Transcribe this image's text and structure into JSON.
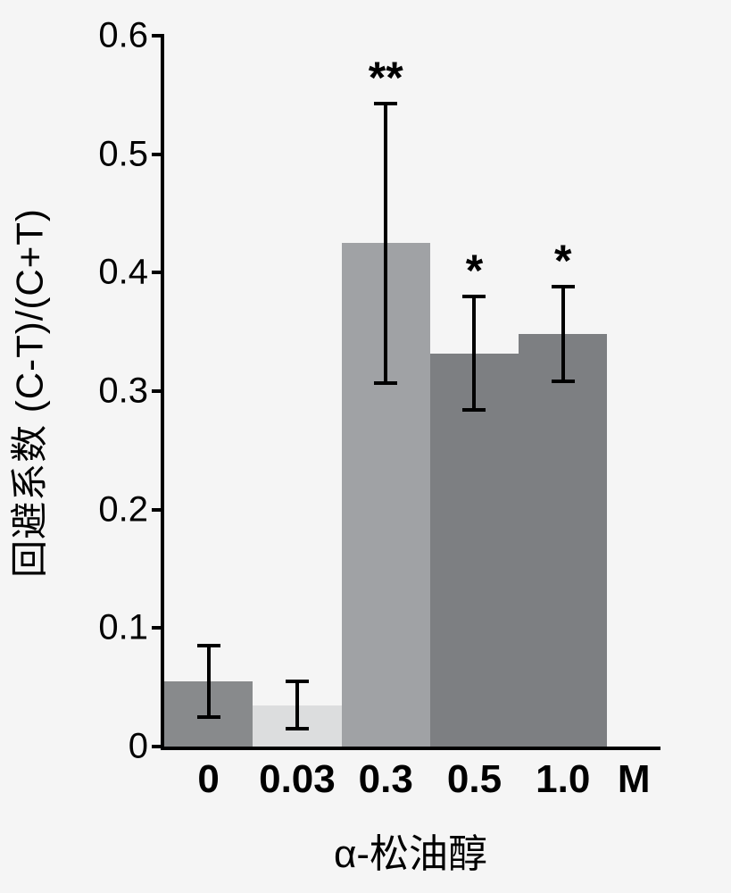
{
  "chart": {
    "type": "bar",
    "ylabel": "回避系数  (C-T)/(C+T)",
    "xlabel": "α-松油醇",
    "ylim": [
      0,
      0.6
    ],
    "yticks": [
      0,
      0.1,
      0.2,
      0.3,
      0.4,
      0.5,
      0.6
    ],
    "ytick_labels": [
      "0",
      "0.1",
      "0.2",
      "0.3",
      "0.4",
      "0.5",
      "0.6"
    ],
    "categories": [
      "0",
      "0.03",
      "0.3",
      "0.5",
      "1.0"
    ],
    "x_extra_label": "M",
    "values": [
      0.055,
      0.035,
      0.425,
      0.332,
      0.348
    ],
    "err_low": [
      0.03,
      0.02,
      0.118,
      0.048,
      0.04
    ],
    "err_high": [
      0.03,
      0.02,
      0.118,
      0.048,
      0.04
    ],
    "significance": [
      "",
      "",
      "**",
      "*",
      "*"
    ],
    "bar_colors": [
      "#888a8c",
      "#dcddde",
      "#a0a2a5",
      "#7d7f82",
      "#7d7f82"
    ],
    "background_color": "#f5f5f5",
    "axis_color": "#000000",
    "title_fontsize": 42,
    "tick_fontsize": 40,
    "xlabel_fontsize": 44,
    "sig_fontsize": 50,
    "bar_width": 1.0
  }
}
